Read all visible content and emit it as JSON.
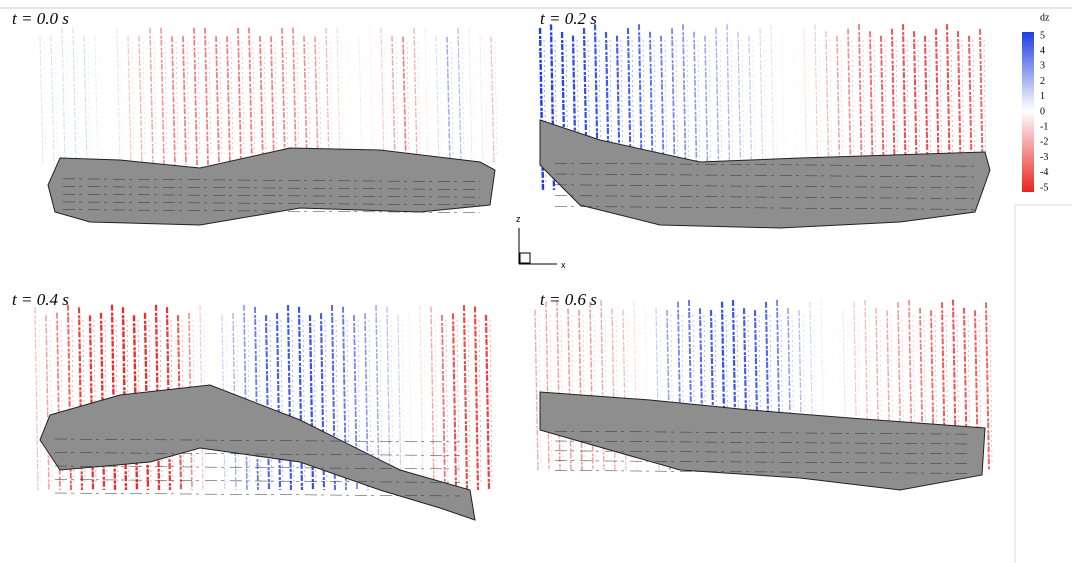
{
  "panels": [
    {
      "title": "t = 0.0 s"
    },
    {
      "title": "t = 0.2 s"
    },
    {
      "title": "t = 0.4 s"
    },
    {
      "title": "t = 0.6 s"
    }
  ],
  "colorbar": {
    "title": "dz",
    "ticks": [
      5,
      4,
      3,
      2,
      1,
      0,
      -1,
      -2,
      -3,
      -4,
      -5
    ]
  },
  "axes_icon": {
    "vertical": "z",
    "horizontal": "x"
  }
}
